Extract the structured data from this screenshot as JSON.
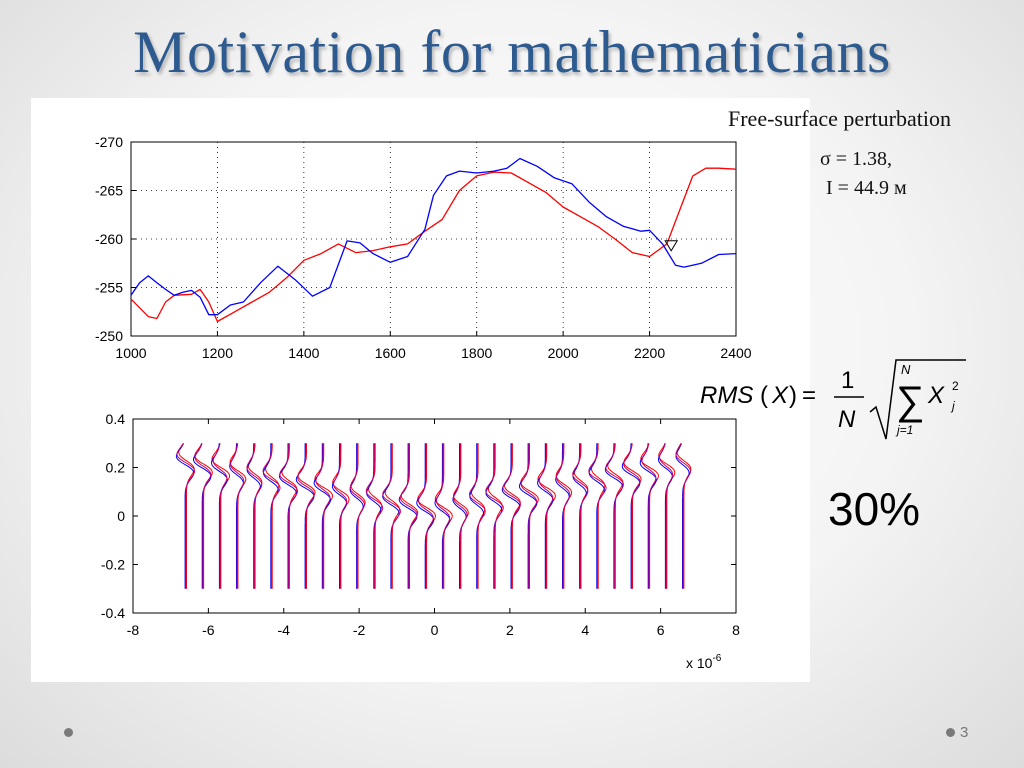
{
  "slide": {
    "title": "Motivation for mathematicians",
    "page_number": "3",
    "caption_title": "Free-surface perturbation",
    "sigma_text": "σ = 1.38,",
    "i_text": "I  = 44.9 м",
    "percent_text": "30%",
    "formula": {
      "lhs": "RMS",
      "var": "X",
      "numerator": "1",
      "denominator": "N",
      "sum_upper": "N",
      "sum_lower": "j=1",
      "term": "X",
      "term_sub": "j",
      "term_sup": "2"
    },
    "colors": {
      "title": "#2e5b8f",
      "series_red": "#ff0000",
      "series_blue": "#0000ff",
      "series_magenta": "#cc0066"
    }
  },
  "chart_data": [
    {
      "type": "line",
      "xlim": [
        1000,
        2400
      ],
      "ylim": [
        -270,
        -250
      ],
      "y_reversed": true,
      "x_ticks": [
        "1000",
        "1200",
        "1400",
        "1600",
        "1800",
        "2000",
        "2200",
        "2400"
      ],
      "y_ticks": [
        "-270",
        "-265",
        "-260",
        "-255",
        "-250"
      ],
      "grid": true,
      "marker": {
        "shape": "triangle-down",
        "x": 2250,
        "y": -259.3
      },
      "series": [
        {
          "color": "#ff0000",
          "x": [
            1000,
            1040,
            1060,
            1080,
            1100,
            1140,
            1160,
            1180,
            1200,
            1240,
            1280,
            1320,
            1360,
            1400,
            1440,
            1480,
            1520,
            1560,
            1600,
            1640,
            1680,
            1720,
            1760,
            1800,
            1840,
            1880,
            1920,
            1960,
            2000,
            2040,
            2080,
            2120,
            2160,
            2200,
            2240,
            2270,
            2300,
            2330,
            2360,
            2400
          ],
          "y": [
            -253.8,
            -252,
            -251.8,
            -253.5,
            -254.2,
            -254.3,
            -254.8,
            -253.5,
            -251.5,
            -252.5,
            -253.5,
            -254.5,
            -256,
            -257.8,
            -258.5,
            -259.5,
            -258.6,
            -258.8,
            -259.2,
            -259.5,
            -260.8,
            -262,
            -265,
            -266.5,
            -266.9,
            -266.8,
            -265.8,
            -264.8,
            -263.3,
            -262.3,
            -261.3,
            -260,
            -258.6,
            -258.2,
            -259.5,
            -263,
            -266.5,
            -267.3,
            -267.3,
            -267.2
          ]
        },
        {
          "color": "#0000ff",
          "x": [
            1000,
            1020,
            1040,
            1060,
            1080,
            1100,
            1120,
            1140,
            1160,
            1180,
            1200,
            1230,
            1260,
            1300,
            1340,
            1380,
            1420,
            1460,
            1500,
            1530,
            1560,
            1600,
            1640,
            1680,
            1700,
            1730,
            1760,
            1800,
            1840,
            1870,
            1900,
            1940,
            1980,
            2020,
            2060,
            2100,
            2140,
            2180,
            2200,
            2230,
            2260,
            2280,
            2320,
            2360,
            2400
          ],
          "y": [
            -254.2,
            -255.5,
            -256.2,
            -255.5,
            -254.8,
            -254.2,
            -254.5,
            -254.7,
            -254,
            -252.2,
            -252.2,
            -253.2,
            -253.5,
            -255.5,
            -257.2,
            -255.8,
            -254.1,
            -255,
            -259.8,
            -259.6,
            -258.5,
            -257.6,
            -258.2,
            -261,
            -264.5,
            -266.5,
            -267,
            -266.8,
            -267,
            -267.3,
            -268.3,
            -267.5,
            -266.3,
            -265.7,
            -263.8,
            -262.3,
            -261.3,
            -260.8,
            -260.9,
            -259.5,
            -257.3,
            -257.1,
            -257.5,
            -258.4,
            -258.5
          ]
        }
      ]
    },
    {
      "type": "line",
      "subtype": "wiggle-traces",
      "xlim": [
        -8,
        8
      ],
      "ylim": [
        -0.4,
        0.4
      ],
      "x_ticks": [
        "-8",
        "-6",
        "-4",
        "-2",
        "0",
        "2",
        "4",
        "6",
        "8"
      ],
      "y_ticks": [
        "0.4",
        "0.2",
        "0",
        "-0.2",
        "-0.4"
      ],
      "x_multiplier": "x 10",
      "x_multiplier_exp": "-6",
      "grid": false,
      "trace_count": 30,
      "trace_x_range": [
        -6.6,
        6.6
      ],
      "trace_y_range": [
        -0.3,
        0.3
      ],
      "wave_front_y_at_edges": 0.22,
      "wave_front_y_at_center": 0.02,
      "series": [
        {
          "color": "#ff0000"
        },
        {
          "color": "#0000ff"
        },
        {
          "color": "#cc0066"
        }
      ]
    }
  ]
}
